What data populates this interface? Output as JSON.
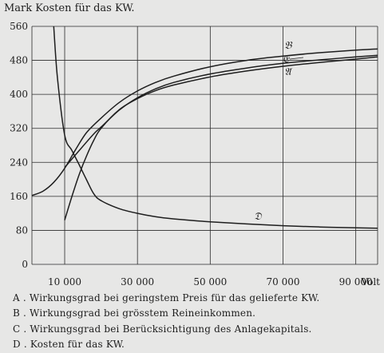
{
  "chart_data": {
    "type": "line",
    "title": "Mark Kosten für das KW.",
    "x_unit_label": "Volt",
    "x_ticks": [
      10000,
      30000,
      50000,
      70000,
      90000
    ],
    "x_tick_labels": [
      "10 000",
      "30 000",
      "50 000",
      "70 000",
      "90 000"
    ],
    "xlim": [
      1000,
      96000
    ],
    "y_ticks": [
      0,
      80,
      160,
      240,
      320,
      400,
      480,
      560
    ],
    "ylim": [
      0,
      560
    ],
    "grid": true,
    "series": [
      {
        "name": "A",
        "x": [
          10000,
          12000,
          14000,
          16000,
          18000,
          20000,
          25000,
          30000,
          35000,
          40000,
          50000,
          60000,
          70000,
          80000,
          90000,
          96000
        ],
        "y": [
          104,
          160,
          212,
          255,
          292,
          320,
          364,
          390,
          409,
          422,
          441,
          455,
          466,
          475,
          483,
          488
        ]
      },
      {
        "name": "B",
        "x": [
          1000,
          4000,
          7000,
          10000,
          13000,
          16000,
          20000,
          25000,
          30000,
          35000,
          40000,
          50000,
          60000,
          70000,
          80000,
          90000,
          96000
        ],
        "y": [
          162,
          172,
          193,
          226,
          270,
          310,
          344,
          381,
          408,
          428,
          443,
          465,
          480,
          490,
          498,
          504,
          507
        ]
      },
      {
        "name": "C",
        "x": [
          10000,
          14000,
          18000,
          20000,
          25000,
          30000,
          35000,
          40000,
          50000,
          60000,
          70000,
          80000,
          90000,
          96000
        ],
        "y": [
          228,
          268,
          307,
          323,
          363,
          392,
          413,
          428,
          448,
          462,
          473,
          481,
          488,
          492
        ]
      },
      {
        "name": "D",
        "x": [
          7000,
          8000,
          10000,
          12000,
          14000,
          16000,
          18000,
          20000,
          25000,
          30000,
          35000,
          40000,
          50000,
          60000,
          70000,
          80000,
          90000,
          96000
        ],
        "y": [
          560,
          440,
          304,
          268,
          234,
          199,
          166,
          150,
          131,
          120,
          112,
          107,
          100,
          95,
          91,
          88,
          86,
          85
        ]
      }
    ],
    "curve_labels": [
      "𝔅",
      "𝔈",
      "𝔄",
      "𝔇"
    ]
  },
  "legend": [
    "A . Wirkungsgrad bei geringstem Preis für das gelieferte KW.",
    "B . Wirkungsgrad bei grösstem Reineinkommen.",
    "C . Wirkungsgrad bei Berücksichtigung des Anlagekapitals.",
    "D . Kosten für das KW."
  ]
}
